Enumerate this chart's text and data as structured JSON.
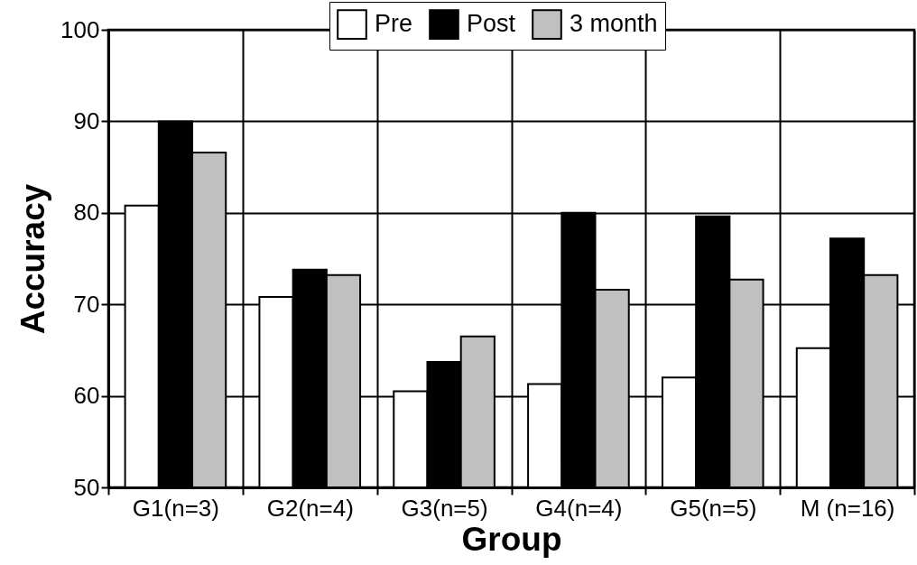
{
  "chart_data": {
    "type": "bar",
    "xlabel": "Group",
    "ylabel": "Accuracy",
    "categories": [
      "G1(n=3)",
      "G2(n=4)",
      "G3(n=5)",
      "G4(n=4)",
      "G5(n=5)",
      "M (n=16)"
    ],
    "series": [
      {
        "name": "Pre",
        "color": "#ffffff",
        "values": [
          80.8,
          70.8,
          60.5,
          61.3,
          62.0,
          65.2
        ]
      },
      {
        "name": "Post",
        "color": "#000000",
        "values": [
          90.0,
          73.8,
          63.7,
          80.0,
          79.6,
          77.2
        ]
      },
      {
        "name": "3 month",
        "color": "#c0c0c0",
        "values": [
          86.6,
          73.2,
          66.5,
          71.6,
          72.7,
          73.2
        ]
      }
    ],
    "ylim": [
      50,
      100
    ],
    "yticks": [
      50,
      60,
      70,
      80,
      90,
      100
    ],
    "grid": true,
    "legend": "top"
  }
}
